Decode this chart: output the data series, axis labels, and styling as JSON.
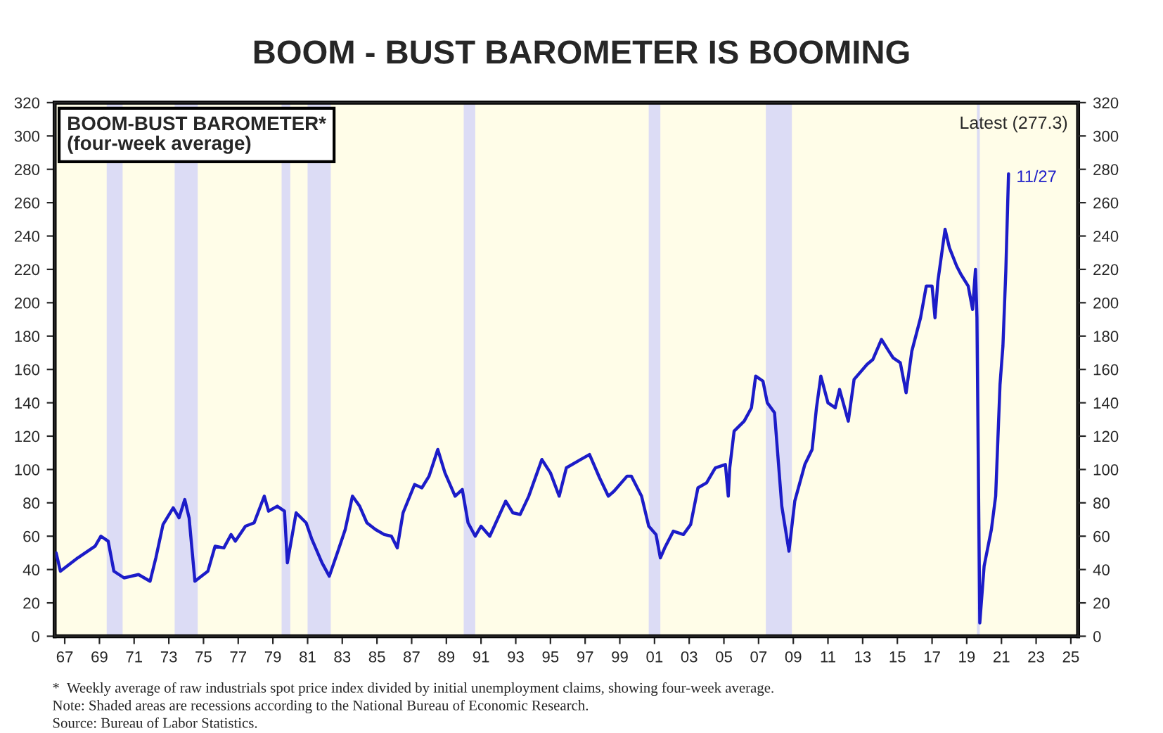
{
  "chart_data": {
    "type": "line",
    "title": "BOOM - BUST BAROMETER IS BOOMING",
    "subtitle": "BOOM-BUST BAROMETER*\n(four-week average)",
    "x": [
      "1967-01",
      "1967-04",
      "1968-04",
      "1969-04",
      "1969-08",
      "1970-01",
      "1970-05",
      "1970-12",
      "1971-10",
      "1972-06",
      "1972-10",
      "1973-03",
      "1973-10",
      "1974-02",
      "1974-06",
      "1974-09",
      "1975-01",
      "1975-10",
      "1976-03",
      "1976-09",
      "1977-02",
      "1977-05",
      "1977-12",
      "1978-06",
      "1979-01",
      "1979-04",
      "1979-10",
      "1980-03",
      "1980-05",
      "1980-11",
      "1981-06",
      "1981-10",
      "1982-05",
      "1982-10",
      "1983-04",
      "1983-09",
      "1984-02",
      "1984-07",
      "1984-12",
      "1985-06",
      "1985-12",
      "1986-05",
      "1986-09",
      "1987-01",
      "1987-09",
      "1988-02",
      "1988-07",
      "1989-01",
      "1989-06",
      "1990-01",
      "1990-06",
      "1990-10",
      "1991-03",
      "1991-07",
      "1992-01",
      "1992-12",
      "1993-05",
      "1993-10",
      "1994-04",
      "1995-01",
      "1995-07",
      "1996-01",
      "1996-06",
      "1997-04",
      "1997-10",
      "1998-05",
      "1998-11",
      "1999-03",
      "1999-12",
      "2000-03",
      "2000-10",
      "2001-03",
      "2001-08",
      "2001-11",
      "2002-02",
      "2002-08",
      "2003-03",
      "2003-08",
      "2004-01",
      "2004-07",
      "2005-01",
      "2005-08",
      "2005-10",
      "2005-11",
      "2006-02",
      "2006-09",
      "2007-02",
      "2007-05",
      "2007-10",
      "2008-01",
      "2008-06",
      "2008-11",
      "2009-04",
      "2009-08",
      "2010-03",
      "2010-08",
      "2010-11",
      "2011-02",
      "2011-07",
      "2011-12",
      "2012-03",
      "2012-09",
      "2013-01",
      "2013-10",
      "2014-02",
      "2014-08",
      "2015-01",
      "2015-04",
      "2015-09",
      "2016-01",
      "2016-05",
      "2016-11",
      "2017-03",
      "2017-07",
      "2017-09",
      "2017-11",
      "2018-04",
      "2018-07",
      "2018-12",
      "2019-03",
      "2019-08",
      "2019-11",
      "2020-01",
      "2020-02",
      "2020-04",
      "2020-07",
      "2020-12",
      "2021-03",
      "2021-06",
      "2021-08",
      "2021-10",
      "2021-11-27"
    ],
    "series": [
      {
        "color": "#1c1cc8",
        "values": [
          50,
          39,
          47,
          54,
          60,
          57,
          39,
          35,
          37,
          33,
          47,
          67,
          77,
          71,
          82,
          71,
          33,
          39,
          54,
          53,
          61,
          57,
          66,
          68,
          84,
          75,
          78,
          75,
          44,
          74,
          68,
          58,
          44,
          36,
          51,
          64,
          84,
          78,
          68,
          64,
          61,
          60,
          53,
          74,
          91,
          89,
          96,
          112,
          98,
          84,
          88,
          68,
          60,
          66,
          60,
          81,
          74,
          73,
          84,
          106,
          98,
          84,
          101,
          106,
          109,
          95,
          84,
          87,
          96,
          96,
          84,
          66,
          61,
          47,
          53,
          63,
          61,
          67,
          89,
          92,
          101,
          103,
          84,
          101,
          123,
          129,
          137,
          156,
          153,
          140,
          134,
          78,
          51,
          81,
          103,
          112,
          137,
          156,
          140,
          137,
          148,
          129,
          154,
          163,
          166,
          178,
          171,
          167,
          164,
          146,
          171,
          191,
          210,
          210,
          191,
          213,
          244,
          233,
          222,
          217,
          210,
          196,
          220,
          191,
          8,
          42,
          64,
          84,
          151,
          174,
          219,
          277.3
        ]
      }
    ],
    "xlim": [
      "1966-12",
      "2025-12"
    ],
    "xticks": [
      {
        "value": "1967-07",
        "label": "67"
      },
      {
        "value": "1969-07",
        "label": "69"
      },
      {
        "value": "1971-07",
        "label": "71"
      },
      {
        "value": "1973-07",
        "label": "73"
      },
      {
        "value": "1975-07",
        "label": "75"
      },
      {
        "value": "1977-07",
        "label": "77"
      },
      {
        "value": "1979-07",
        "label": "79"
      },
      {
        "value": "1981-07",
        "label": "81"
      },
      {
        "value": "1983-07",
        "label": "83"
      },
      {
        "value": "1985-07",
        "label": "85"
      },
      {
        "value": "1987-07",
        "label": "87"
      },
      {
        "value": "1989-07",
        "label": "89"
      },
      {
        "value": "1991-07",
        "label": "91"
      },
      {
        "value": "1993-07",
        "label": "93"
      },
      {
        "value": "1995-07",
        "label": "95"
      },
      {
        "value": "1997-07",
        "label": "97"
      },
      {
        "value": "1999-07",
        "label": "99"
      },
      {
        "value": "2001-07",
        "label": "01"
      },
      {
        "value": "2003-07",
        "label": "03"
      },
      {
        "value": "2005-07",
        "label": "05"
      },
      {
        "value": "2007-07",
        "label": "07"
      },
      {
        "value": "2009-07",
        "label": "09"
      },
      {
        "value": "2011-07",
        "label": "11"
      },
      {
        "value": "2013-07",
        "label": "13"
      },
      {
        "value": "2015-07",
        "label": "15"
      },
      {
        "value": "2017-07",
        "label": "17"
      },
      {
        "value": "2019-07",
        "label": "19"
      },
      {
        "value": "2021-07",
        "label": "21"
      },
      {
        "value": "2023-07",
        "label": "23"
      },
      {
        "value": "2025-07",
        "label": "25"
      }
    ],
    "ylim": [
      0,
      320
    ],
    "yticks": [
      0,
      20,
      40,
      60,
      80,
      100,
      120,
      140,
      160,
      180,
      200,
      220,
      240,
      260,
      280,
      300,
      320
    ],
    "y2lim": [
      0,
      320
    ],
    "y2ticks": [
      0,
      20,
      40,
      60,
      80,
      100,
      120,
      140,
      160,
      180,
      200,
      220,
      240,
      260,
      280,
      300,
      320
    ],
    "bands": [
      {
        "axis": "x",
        "from": "1969-12",
        "to": "1970-11",
        "color": "#dcdcf5"
      },
      {
        "axis": "x",
        "from": "1973-11",
        "to": "1975-03",
        "color": "#dcdcf5"
      },
      {
        "axis": "x",
        "from": "1980-01",
        "to": "1980-07",
        "color": "#dcdcf5"
      },
      {
        "axis": "x",
        "from": "1981-07",
        "to": "1982-11",
        "color": "#dcdcf5"
      },
      {
        "axis": "x",
        "from": "1990-07",
        "to": "1991-03",
        "color": "#dcdcf5"
      },
      {
        "axis": "x",
        "from": "2001-03",
        "to": "2001-11",
        "color": "#dcdcf5"
      },
      {
        "axis": "x",
        "from": "2007-12",
        "to": "2009-06",
        "color": "#dcdcf5"
      },
      {
        "axis": "x",
        "from": "2020-02",
        "to": "2020-04",
        "color": "#dcdcf5"
      }
    ],
    "annotations": [
      "Latest (277.3)",
      {
        "text": "11/27",
        "x": "2021-11-27",
        "y": 277.3
      },
      "*  Weekly average of raw industrials spot price index divided by initial unemployment claims, showing four-week average.",
      "Note: Shaded areas are recessions according to the National Bureau of Economic Research.",
      "Source: Bureau of Labor Statistics."
    ],
    "grid": false,
    "legend": false
  }
}
